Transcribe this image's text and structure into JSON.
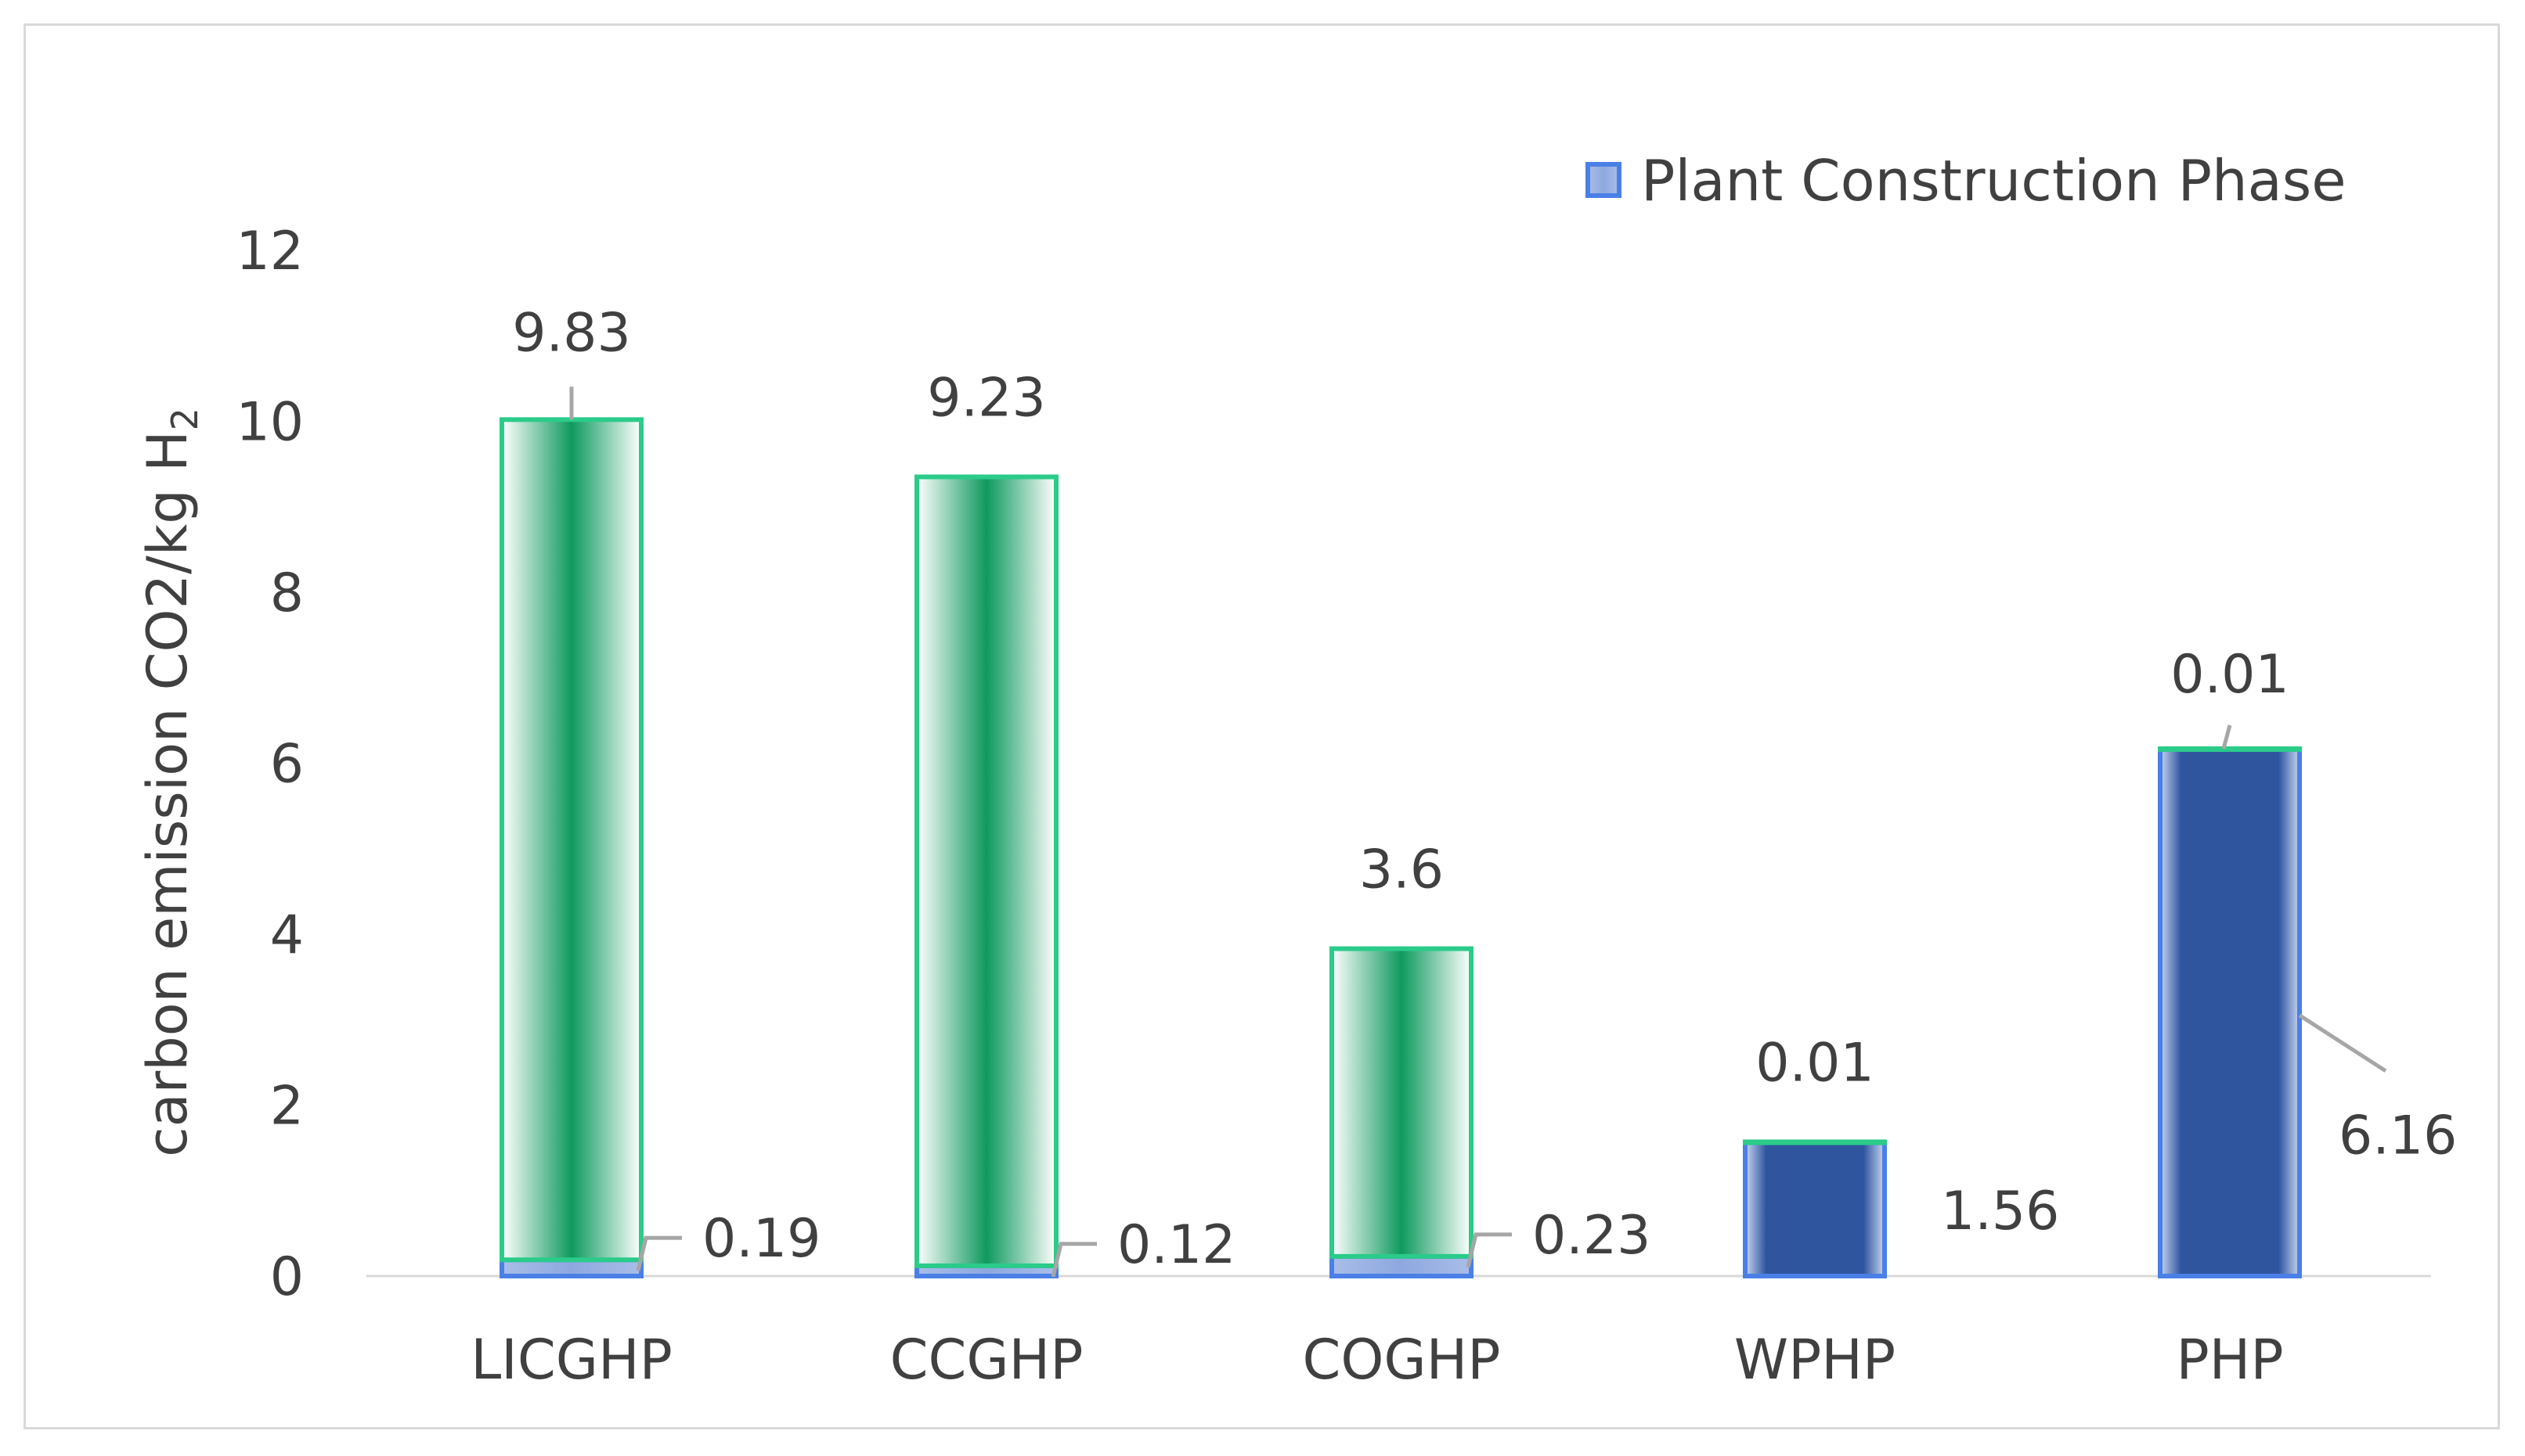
{
  "chart_data": {
    "type": "bar",
    "stacked": true,
    "categories": [
      "LICGHP",
      "CCGHP",
      "COGHP",
      "WPHP",
      "PHP"
    ],
    "series": [
      {
        "name": "Plant Construction Phase",
        "values": [
          0.19,
          0.12,
          0.23,
          1.56,
          6.16
        ],
        "labels": [
          "0.19",
          "0.12",
          "0.23",
          "1.56",
          "6.16"
        ],
        "color": "#2F559F",
        "border": "#4A7FE6"
      },
      {
        "values": [
          9.83,
          9.23,
          3.6,
          0.01,
          0.01
        ],
        "labels": [
          "9.83",
          "9.23",
          "3.6",
          "0.01",
          "0.01"
        ],
        "color": "#0E9A5E",
        "border": "#2BCB8A"
      }
    ],
    "ylabel": "carbon emission CO2/kg H",
    "ylabel_subscript": "2",
    "ylim": [
      0,
      12
    ],
    "yticks": [
      "0",
      "2",
      "4",
      "6",
      "8",
      "10",
      "12"
    ],
    "grid": false,
    "legend_position": "top-right"
  }
}
